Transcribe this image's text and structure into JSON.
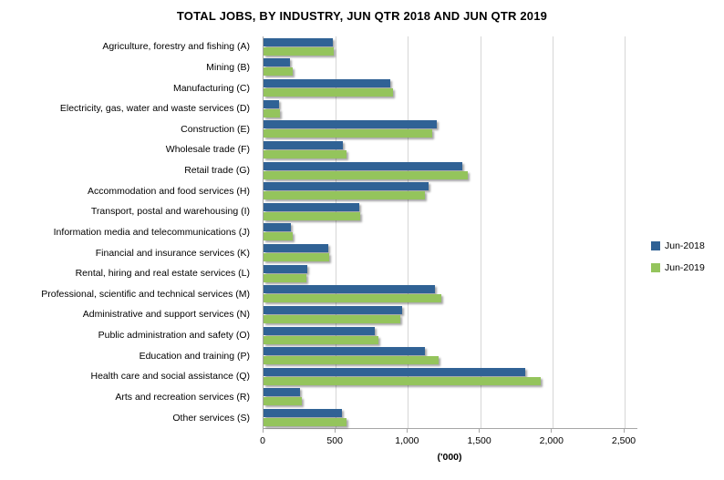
{
  "title": "TOTAL JOBS, BY INDUSTRY, JUN QTR 2018 AND JUN QTR 2019",
  "chart_data": {
    "type": "bar",
    "orientation": "horizontal",
    "title": "TOTAL JOBS, BY INDUSTRY, JUN QTR 2018 AND JUN QTR 2019",
    "categories": [
      "Agriculture, forestry and fishing (A)",
      "Mining (B)",
      "Manufacturing (C)",
      "Electricity, gas, water and waste services (D)",
      "Construction (E)",
      "Wholesale trade (F)",
      "Retail trade (G)",
      "Accommodation and food services (H)",
      "Transport, postal and warehousing (I)",
      "Information media and telecommunications (J)",
      "Financial and insurance services (K)",
      "Rental, hiring and real estate services (L)",
      "Professional, scientific and technical services (M)",
      "Administrative and support services (N)",
      "Public administration and safety (O)",
      "Education and training (P)",
      "Health care and social assistance (Q)",
      "Arts and recreation services (R)",
      "Other services (S)"
    ],
    "series": [
      {
        "name": "Jun-2018",
        "color": "#306295",
        "values": [
          480,
          185,
          880,
          105,
          1200,
          550,
          1375,
          1140,
          665,
          190,
          450,
          300,
          1185,
          960,
          770,
          1115,
          1810,
          250,
          540
        ]
      },
      {
        "name": "Jun-2019",
        "color": "#94C45C",
        "values": [
          485,
          200,
          895,
          115,
          1170,
          575,
          1415,
          1120,
          670,
          200,
          455,
          295,
          1230,
          945,
          795,
          1215,
          1920,
          265,
          575
        ]
      }
    ],
    "xlabel": "('000)",
    "xlim": [
      0,
      2500
    ],
    "xticks": [
      0,
      500,
      1000,
      1500,
      2000,
      2500
    ],
    "xtick_labels": [
      "0",
      "500",
      "1,000",
      "1,500",
      "2,000",
      "2,500"
    ],
    "grid": true,
    "legend_position": "right"
  },
  "colors": {
    "gridline": "#D6D6D6",
    "axis": "#A6A6A6",
    "text": "#000000"
  }
}
